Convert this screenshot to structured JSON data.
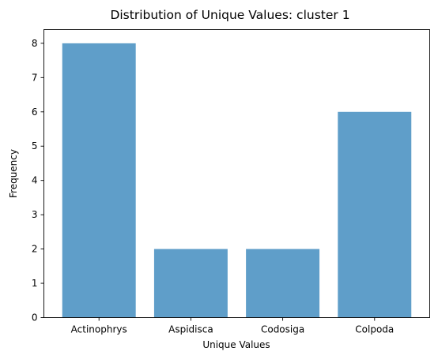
{
  "chart_data": {
    "type": "bar",
    "title": "Distribution of Unique Values: cluster 1",
    "xlabel": "Unique Values",
    "ylabel": "Frequency",
    "categories": [
      "Actinophrys",
      "Aspidisca",
      "Codosiga",
      "Colpoda"
    ],
    "values": [
      8,
      2,
      2,
      6
    ],
    "ylim": [
      0,
      8.4
    ],
    "yticks": [
      0,
      1,
      2,
      3,
      4,
      5,
      6,
      7,
      8
    ],
    "grid": false,
    "legend": "none",
    "bar_color": "#5f9ec9"
  }
}
